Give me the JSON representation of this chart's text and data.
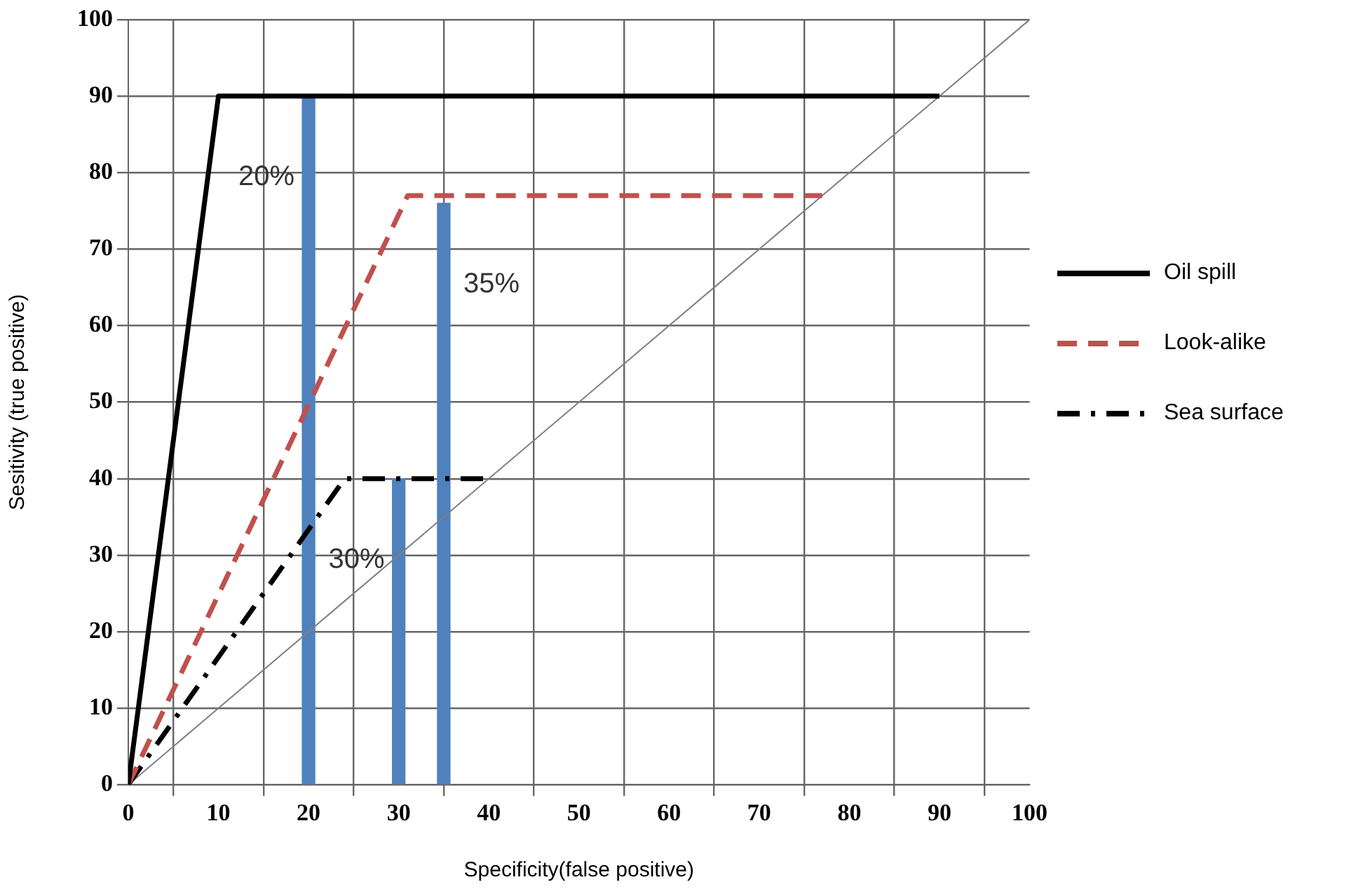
{
  "chart_data": {
    "type": "line",
    "xlabel": "Specificity(false positive)",
    "ylabel": "Sesitivity (true positive)",
    "xlim": [
      0,
      100
    ],
    "ylim": [
      0,
      100
    ],
    "xticks": [
      0,
      10,
      20,
      30,
      40,
      50,
      60,
      70,
      80,
      90,
      100
    ],
    "yticks": [
      0,
      10,
      20,
      30,
      40,
      50,
      60,
      70,
      80,
      90,
      100
    ],
    "grid": true,
    "legend": "right",
    "marker": "none",
    "series": [
      {
        "name": "Oil spill",
        "color": "#000000",
        "line_style": "solid",
        "x": [
          0,
          10,
          90
        ],
        "values": [
          0,
          90,
          90
        ]
      },
      {
        "name": "Look-alike",
        "color": "#c0504d",
        "line_style": "dashed",
        "x": [
          0,
          31,
          77
        ],
        "values": [
          0,
          77,
          77
        ]
      },
      {
        "name": "Sea surface",
        "color": "#000000",
        "line_style": "dashdot",
        "x": [
          0,
          24,
          40
        ],
        "values": [
          0,
          40,
          40
        ]
      },
      {
        "type": "line",
        "color": "#7f7f7f",
        "line_style": "solid",
        "x": [
          0,
          100
        ],
        "values": [
          0,
          100
        ]
      },
      {
        "type": "bar",
        "color": "#4f81bd",
        "x": [
          20,
          30,
          35
        ],
        "values": [
          90,
          40,
          76
        ]
      }
    ],
    "annotations": [
      {
        "text": "20%",
        "x": 20,
        "y": 90
      },
      {
        "text": "30%",
        "x": 30,
        "y": 40
      },
      {
        "text": "35%",
        "x": 35,
        "y": 76
      }
    ]
  }
}
